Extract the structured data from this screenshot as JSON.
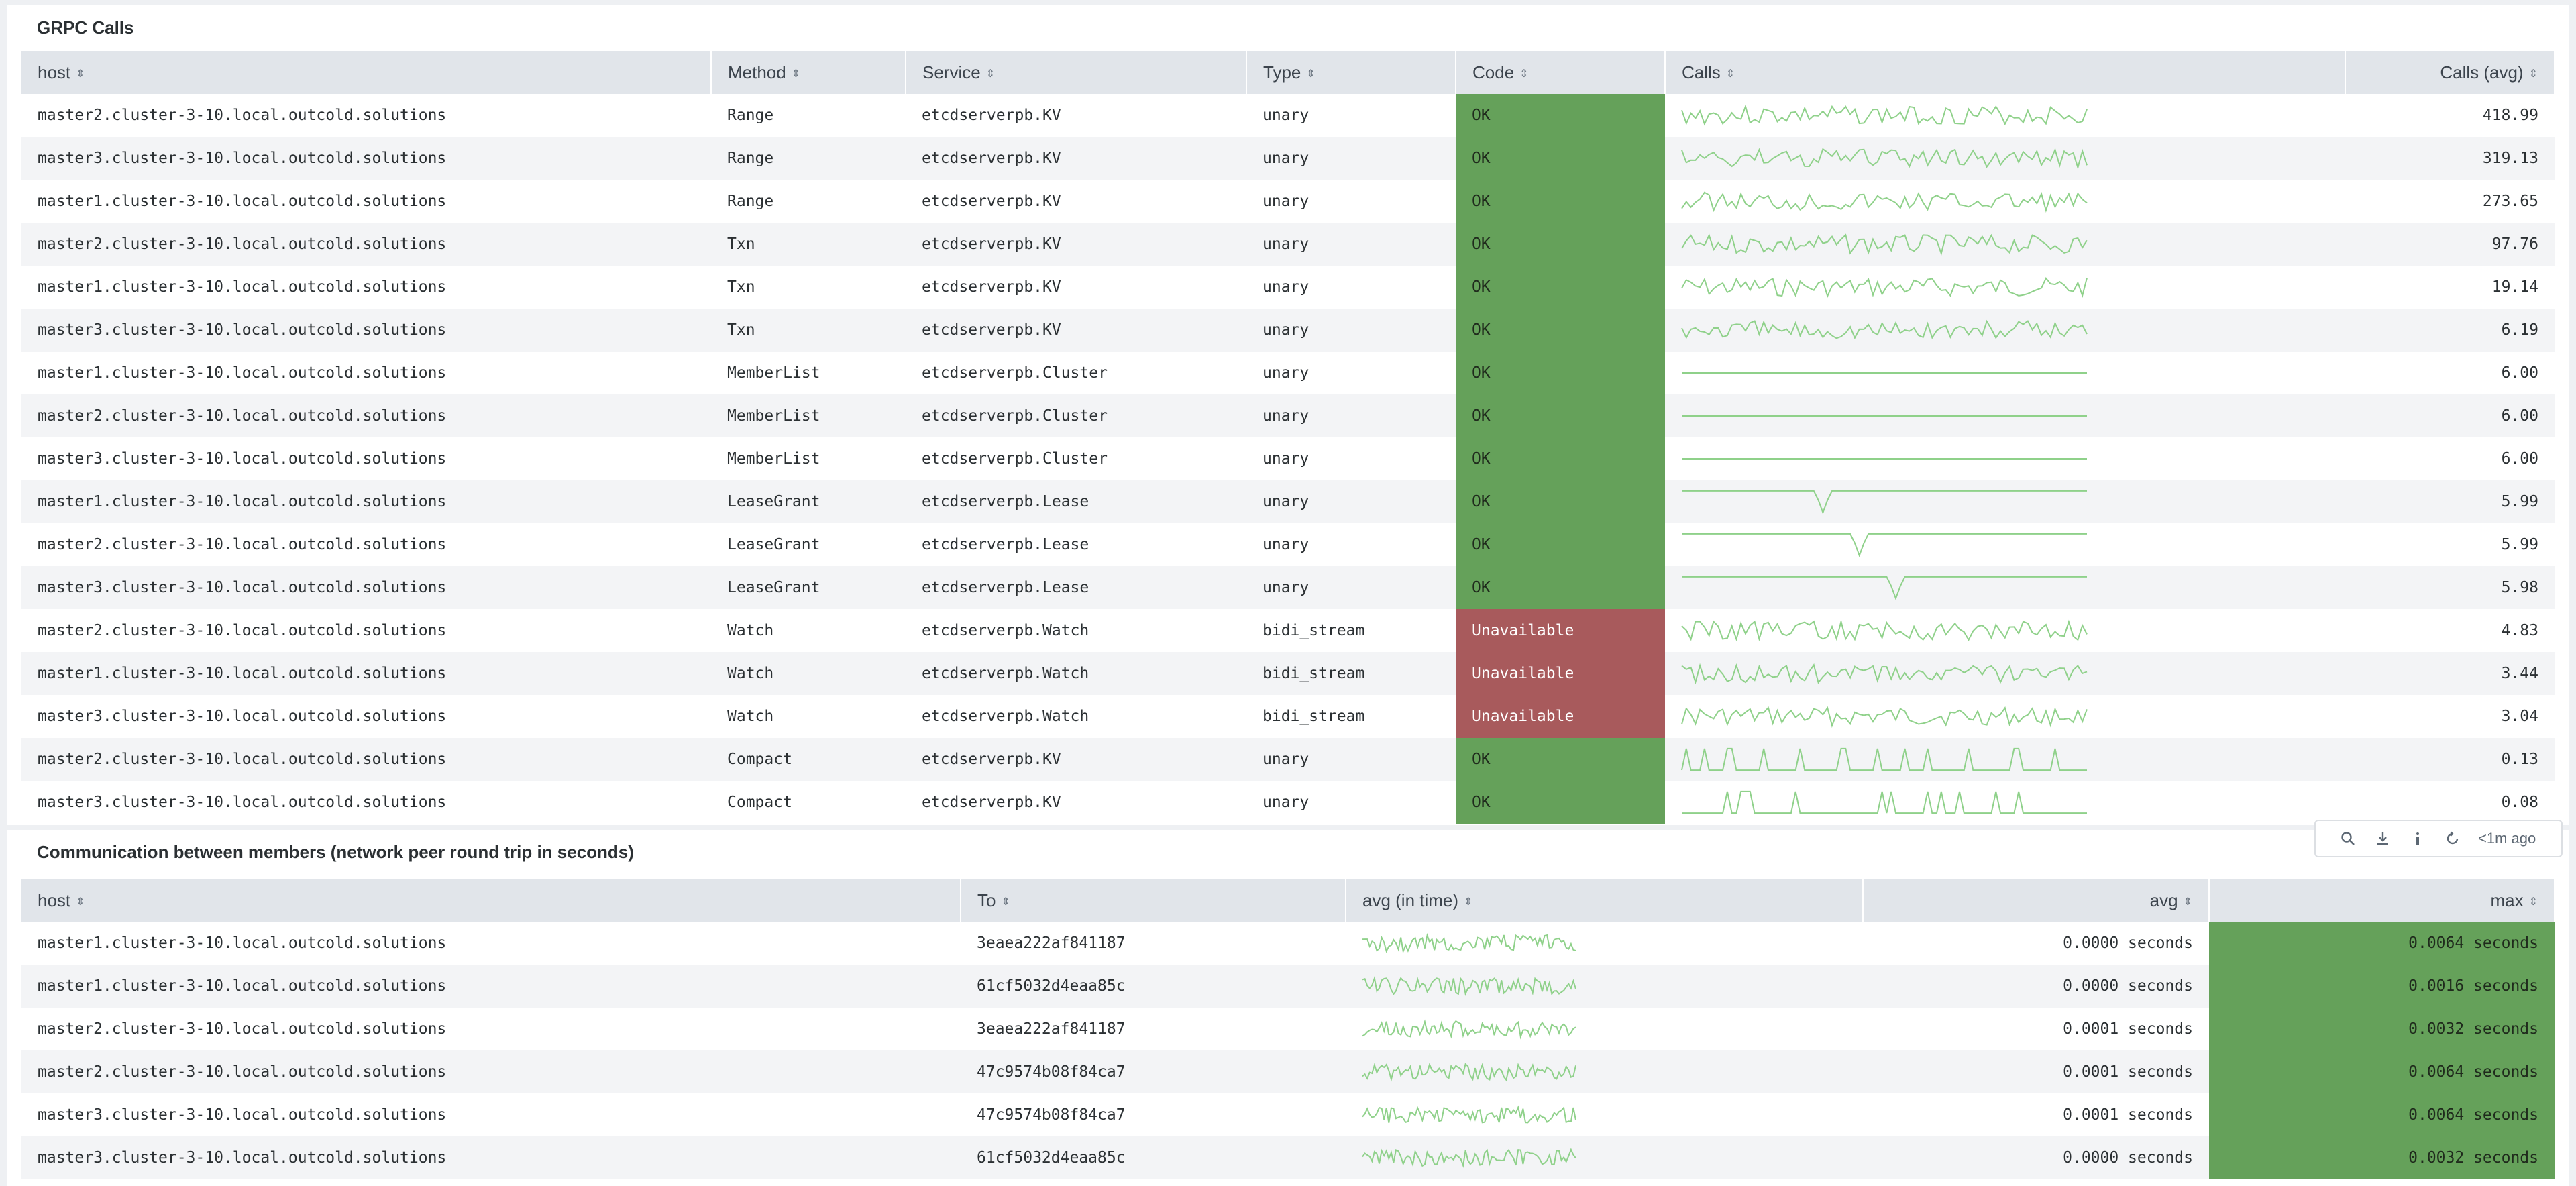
{
  "grpc": {
    "title": "GRPC Calls",
    "columns": [
      "host",
      "Method",
      "Service",
      "Type",
      "Code",
      "Calls",
      "Calls (avg)"
    ],
    "rows": [
      {
        "host": "master2.cluster-3-10.local.outcold.solutions",
        "method": "Range",
        "service": "etcdserverpb.KV",
        "type": "unary",
        "code": "OK",
        "avg": "418.99"
      },
      {
        "host": "master3.cluster-3-10.local.outcold.solutions",
        "method": "Range",
        "service": "etcdserverpb.KV",
        "type": "unary",
        "code": "OK",
        "avg": "319.13"
      },
      {
        "host": "master1.cluster-3-10.local.outcold.solutions",
        "method": "Range",
        "service": "etcdserverpb.KV",
        "type": "unary",
        "code": "OK",
        "avg": "273.65"
      },
      {
        "host": "master2.cluster-3-10.local.outcold.solutions",
        "method": "Txn",
        "service": "etcdserverpb.KV",
        "type": "unary",
        "code": "OK",
        "avg": "97.76"
      },
      {
        "host": "master1.cluster-3-10.local.outcold.solutions",
        "method": "Txn",
        "service": "etcdserverpb.KV",
        "type": "unary",
        "code": "OK",
        "avg": "19.14"
      },
      {
        "host": "master3.cluster-3-10.local.outcold.solutions",
        "method": "Txn",
        "service": "etcdserverpb.KV",
        "type": "unary",
        "code": "OK",
        "avg": "6.19"
      },
      {
        "host": "master1.cluster-3-10.local.outcold.solutions",
        "method": "MemberList",
        "service": "etcdserverpb.Cluster",
        "type": "unary",
        "code": "OK",
        "avg": "6.00"
      },
      {
        "host": "master2.cluster-3-10.local.outcold.solutions",
        "method": "MemberList",
        "service": "etcdserverpb.Cluster",
        "type": "unary",
        "code": "OK",
        "avg": "6.00"
      },
      {
        "host": "master3.cluster-3-10.local.outcold.solutions",
        "method": "MemberList",
        "service": "etcdserverpb.Cluster",
        "type": "unary",
        "code": "OK",
        "avg": "6.00"
      },
      {
        "host": "master1.cluster-3-10.local.outcold.solutions",
        "method": "LeaseGrant",
        "service": "etcdserverpb.Lease",
        "type": "unary",
        "code": "OK",
        "avg": "5.99"
      },
      {
        "host": "master2.cluster-3-10.local.outcold.solutions",
        "method": "LeaseGrant",
        "service": "etcdserverpb.Lease",
        "type": "unary",
        "code": "OK",
        "avg": "5.99"
      },
      {
        "host": "master3.cluster-3-10.local.outcold.solutions",
        "method": "LeaseGrant",
        "service": "etcdserverpb.Lease",
        "type": "unary",
        "code": "OK",
        "avg": "5.98"
      },
      {
        "host": "master2.cluster-3-10.local.outcold.solutions",
        "method": "Watch",
        "service": "etcdserverpb.Watch",
        "type": "bidi_stream",
        "code": "Unavailable",
        "avg": "4.83"
      },
      {
        "host": "master1.cluster-3-10.local.outcold.solutions",
        "method": "Watch",
        "service": "etcdserverpb.Watch",
        "type": "bidi_stream",
        "code": "Unavailable",
        "avg": "3.44"
      },
      {
        "host": "master3.cluster-3-10.local.outcold.solutions",
        "method": "Watch",
        "service": "etcdserverpb.Watch",
        "type": "bidi_stream",
        "code": "Unavailable",
        "avg": "3.04"
      },
      {
        "host": "master2.cluster-3-10.local.outcold.solutions",
        "method": "Compact",
        "service": "etcdserverpb.KV",
        "type": "unary",
        "code": "OK",
        "avg": "0.13"
      },
      {
        "host": "master3.cluster-3-10.local.outcold.solutions",
        "method": "Compact",
        "service": "etcdserverpb.KV",
        "type": "unary",
        "code": "OK",
        "avg": "0.08"
      }
    ]
  },
  "toolbar": {
    "search_icon": "search-icon",
    "export_icon": "download-icon",
    "inspect_icon": "info-icon",
    "refresh_icon": "refresh-icon",
    "last_updated": "<1m ago"
  },
  "peers": {
    "title": "Communication between members (network peer round trip in seconds)",
    "columns": [
      "host",
      "To",
      "avg (in time)",
      "avg",
      "max"
    ],
    "rows": [
      {
        "host": "master1.cluster-3-10.local.outcold.solutions",
        "to": "3eaea222af841187",
        "avg": "0.0000 seconds",
        "max": "0.0064 seconds"
      },
      {
        "host": "master1.cluster-3-10.local.outcold.solutions",
        "to": "61cf5032d4eaa85c",
        "avg": "0.0000 seconds",
        "max": "0.0016 seconds"
      },
      {
        "host": "master2.cluster-3-10.local.outcold.solutions",
        "to": "3eaea222af841187",
        "avg": "0.0001 seconds",
        "max": "0.0032 seconds"
      },
      {
        "host": "master2.cluster-3-10.local.outcold.solutions",
        "to": "47c9574b08f84ca7",
        "avg": "0.0001 seconds",
        "max": "0.0064 seconds"
      },
      {
        "host": "master3.cluster-3-10.local.outcold.solutions",
        "to": "47c9574b08f84ca7",
        "avg": "0.0001 seconds",
        "max": "0.0064 seconds"
      },
      {
        "host": "master3.cluster-3-10.local.outcold.solutions",
        "to": "61cf5032d4eaa85c",
        "avg": "0.0000 seconds",
        "max": "0.0032 seconds"
      }
    ]
  },
  "colors": {
    "ok": "#65a15a",
    "unavailable": "#a85a5c",
    "max_cell": "#65a15a",
    "sparkline": "#8fd18a",
    "header_bg": "#e1e5ea"
  }
}
